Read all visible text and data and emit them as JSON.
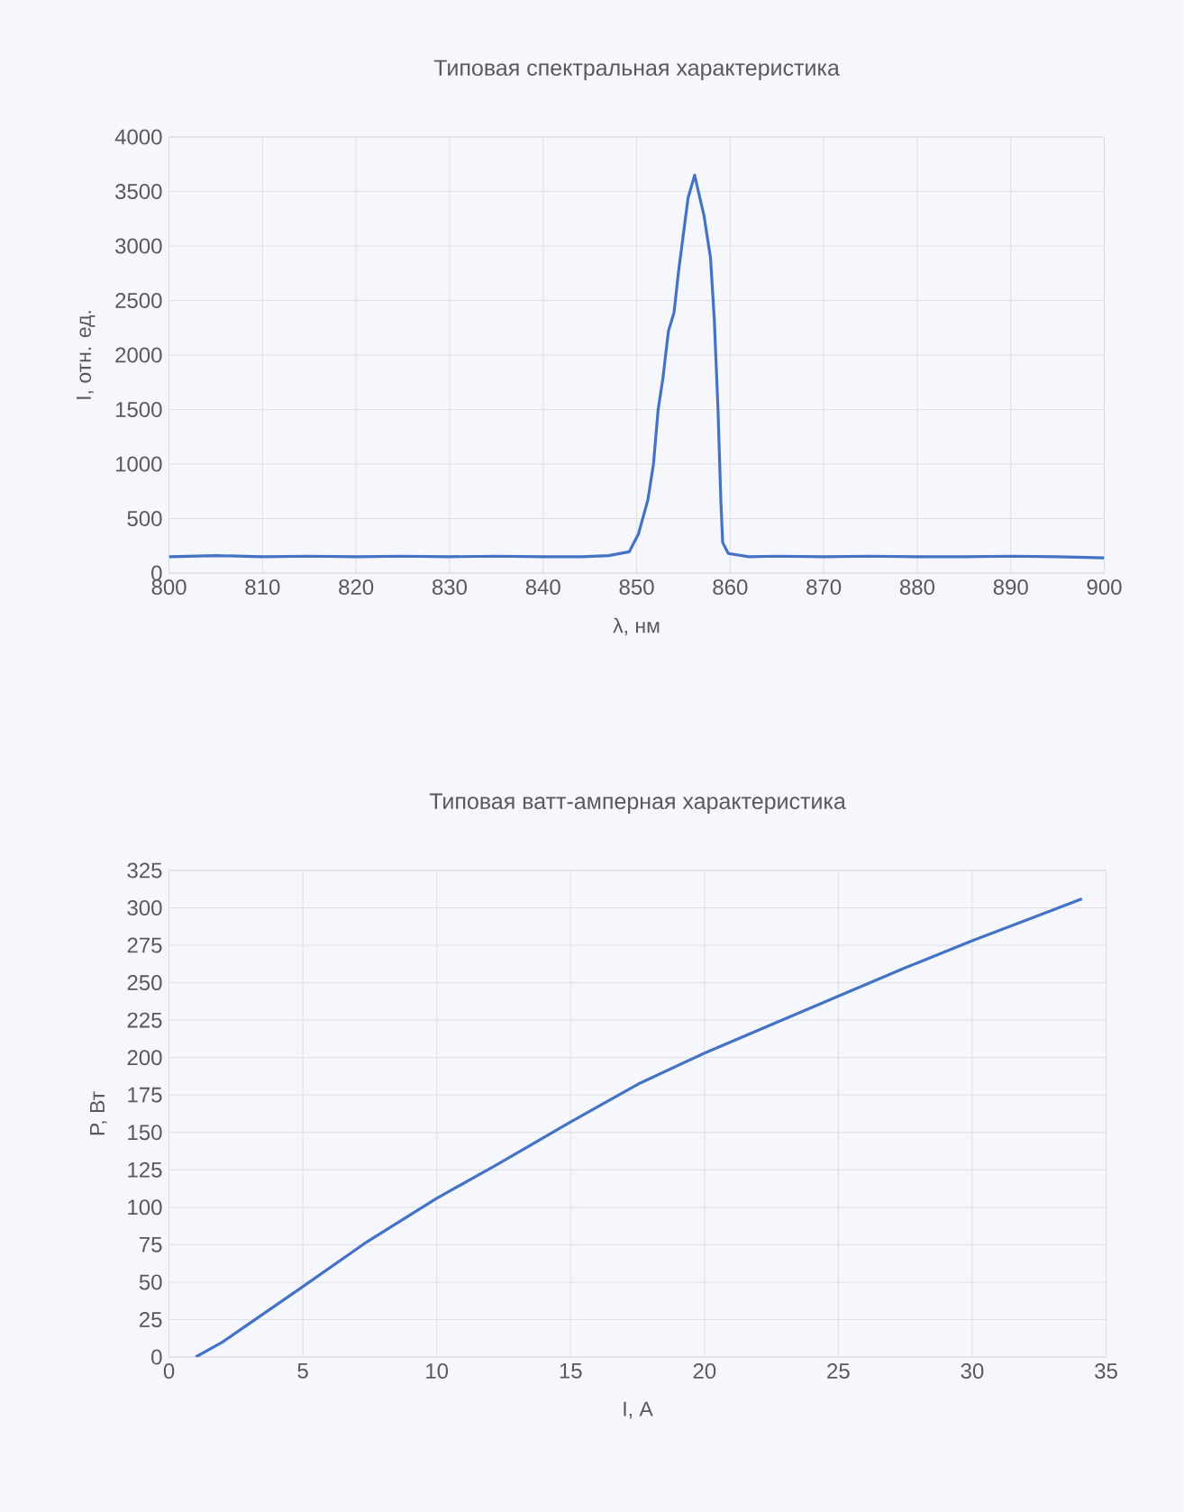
{
  "chart_data": [
    {
      "type": "line",
      "title": "Типовая спектральная характеристика",
      "xlabel": "λ, нм",
      "ylabel": "I, отн. ед.",
      "xlim": [
        800,
        900
      ],
      "ylim": [
        0,
        4000
      ],
      "xticks": [
        800,
        810,
        820,
        830,
        840,
        850,
        860,
        870,
        880,
        890,
        900
      ],
      "yticks": [
        0,
        500,
        1000,
        1500,
        2000,
        2500,
        3000,
        3500,
        4000
      ],
      "grid": true,
      "series": [
        {
          "color": "#4472c4",
          "x": [
            800,
            805,
            810,
            815,
            820,
            825,
            830,
            835,
            840,
            844.1,
            847,
            849.2,
            850.2,
            851.2,
            851.8,
            852.3,
            852.8,
            853.4,
            854.0,
            854.5,
            855.0,
            855.5,
            856.2,
            856.6,
            857.2,
            857.9,
            858.3,
            858.7,
            859.0,
            859.2,
            859.8,
            862,
            865,
            870,
            875,
            880,
            885,
            890,
            895,
            900
          ],
          "values": [
            150,
            160,
            150,
            155,
            150,
            155,
            150,
            155,
            150,
            150,
            160,
            195,
            360,
            670,
            1000,
            1500,
            1780,
            2220,
            2390,
            2780,
            3110,
            3440,
            3650,
            3500,
            3280,
            2890,
            2330,
            1500,
            670,
            280,
            180,
            150,
            155,
            150,
            155,
            150,
            150,
            155,
            150,
            140
          ]
        }
      ]
    },
    {
      "type": "line",
      "title": "Типовая ватт-амперная характеристика",
      "xlabel": "I, А",
      "ylabel": "P, Вт",
      "xlim": [
        0,
        35
      ],
      "ylim": [
        0,
        325
      ],
      "xticks": [
        0,
        5,
        10,
        15,
        20,
        25,
        30,
        35
      ],
      "yticks": [
        0,
        25,
        50,
        75,
        100,
        125,
        150,
        175,
        200,
        225,
        250,
        275,
        300,
        325
      ],
      "grid": true,
      "series": [
        {
          "color": "#4472c4",
          "x": [
            1.0,
            2.0,
            5.0,
            7.4,
            10.0,
            12.3,
            15.0,
            17.6,
            20.0,
            22.5,
            25.0,
            27.5,
            30.0,
            34.1
          ],
          "values": [
            0,
            10,
            47,
            77,
            106,
            129,
            157,
            183,
            203,
            222,
            241,
            260,
            278,
            306
          ]
        }
      ]
    }
  ]
}
